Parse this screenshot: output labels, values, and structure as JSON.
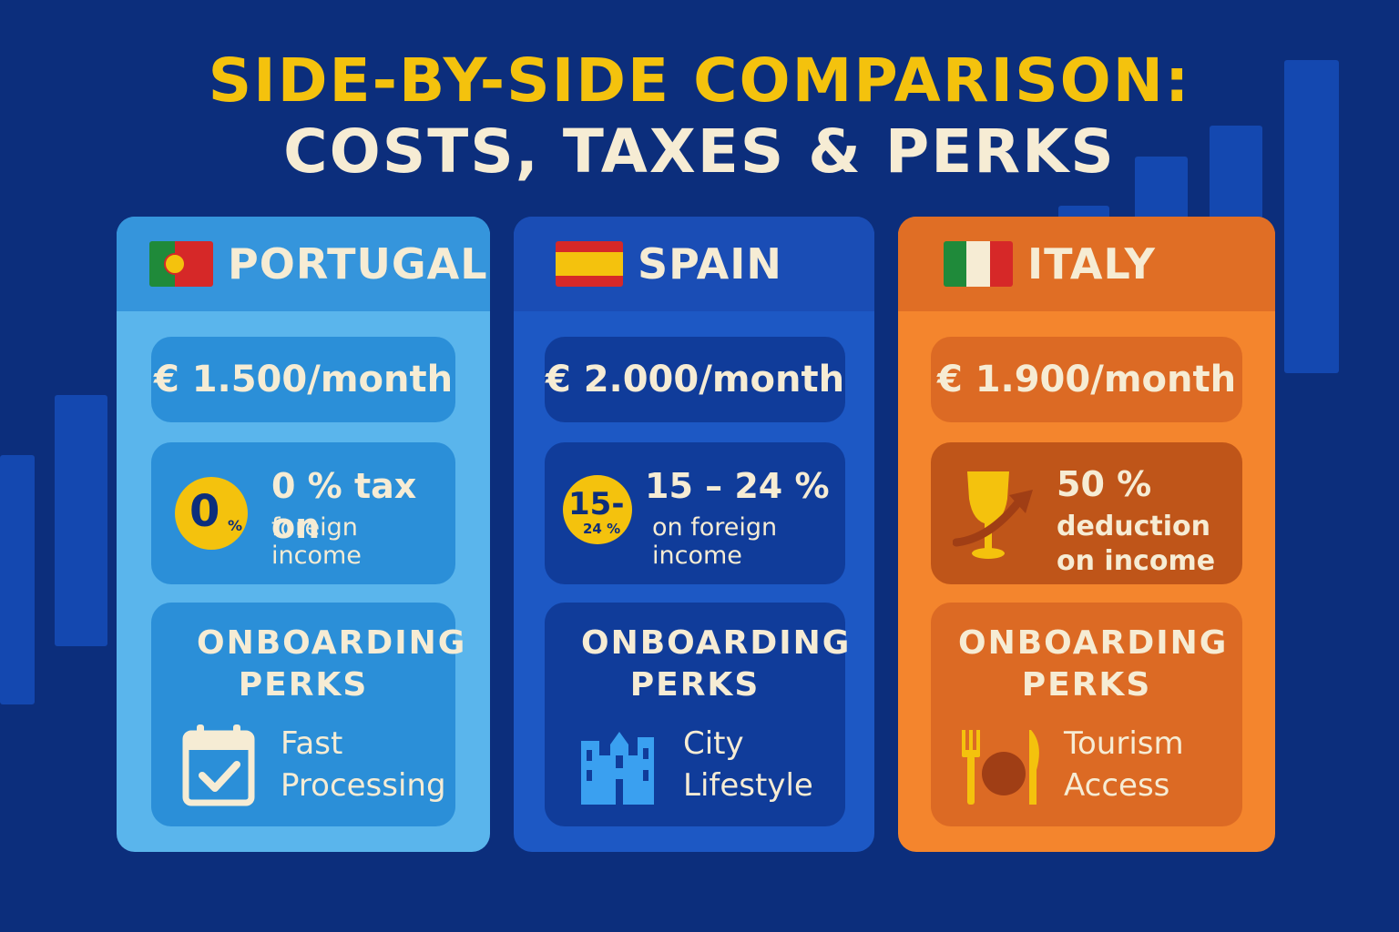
{
  "title": {
    "line1": "SIDE-BY-SIDE COMPARISON:",
    "line2": "COSTS, TAXES & PERKS",
    "line1_color": "#f4c20d",
    "line2_color": "#f6ecd4"
  },
  "background_color": "#0c2e7c",
  "cards": [
    {
      "country": "PORTUGAL",
      "flag": "portugal-flag",
      "cost": "€ 1.500/month",
      "tax_badge_main": "0",
      "tax_badge_sub": "%",
      "tax_line1": "0 % tax on",
      "tax_line2": "foreign income",
      "perks_title": "ONBOARDING PERKS",
      "perk_icon": "calendar-check-icon",
      "perk_line1": "Fast",
      "perk_line2": "Processing",
      "colors": {
        "header": "#3595dc",
        "body": "#5ab5ec",
        "box": "#2b8fd8"
      }
    },
    {
      "country": "SPAIN",
      "flag": "spain-flag",
      "cost": "€ 2.000/month",
      "tax_badge_main": "15-",
      "tax_badge_sub": "24 %",
      "tax_line1": "15 – 24 %",
      "tax_line2": "on foreign income",
      "perks_title": "ONBOARDING PERKS",
      "perk_icon": "city-buildings-icon",
      "perk_line1": "City",
      "perk_line2": "Lifestyle",
      "colors": {
        "header": "#1a4db5",
        "body": "#1d58c4",
        "box": "#103c9a"
      }
    },
    {
      "country": "ITALY",
      "flag": "italy-flag",
      "cost": "€ 1.900/month",
      "tax_line1": "50 %",
      "tax_line2": "deduction",
      "tax_line3": "on income",
      "tax_icon": "wine-glass-arrow-icon",
      "perks_title": "ONBOARDING PERKS",
      "perk_icon": "fork-plate-knife-icon",
      "perk_line1": "Tourism",
      "perk_line2": "Access",
      "colors": {
        "header": "#e06e25",
        "body": "#f4852d",
        "box": "#dc6a24",
        "tax_box": "#bf5519"
      }
    }
  ]
}
